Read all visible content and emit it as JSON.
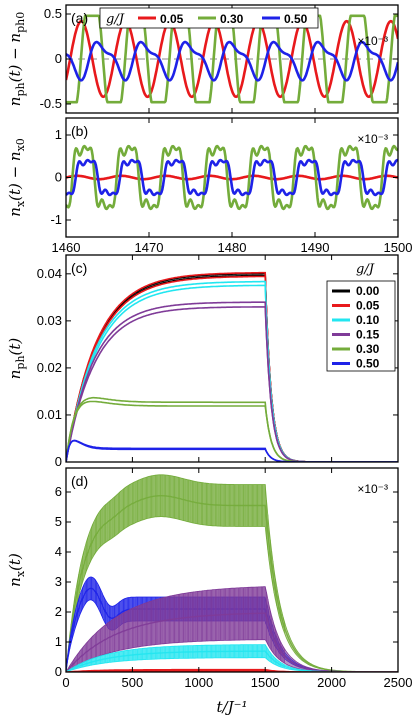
{
  "chart_data": [
    {
      "panel_label": "(a)",
      "type": "line",
      "ylabel": "n_ph(t) − n_ph0",
      "ylabel_parts": {
        "var": "n",
        "sub": "ph",
        "arg": "(t) − ",
        "var2": "n",
        "sub2": "ph0"
      },
      "multiplier": "×10⁻³",
      "xlim": [
        1460,
        1500
      ],
      "ylim": [
        -0.6,
        0.6
      ],
      "yticks": [
        "-0.5",
        "0",
        "0.5"
      ],
      "legend": {
        "title": "g/J",
        "placement": "top",
        "entries": [
          "0.05",
          "0.30",
          "0.50"
        ]
      },
      "reference_line": {
        "y": 0,
        "style": "dashed"
      },
      "series": [
        {
          "name": "0.05",
          "color": "#e8191c",
          "period": 5.33,
          "phase": 1460.5,
          "shape": "sine",
          "amplitude": 0.42,
          "offset": 0.0
        },
        {
          "name": "0.30",
          "color": "#74ac3b",
          "period": 5.33,
          "phase": 1461.8,
          "shape": "plateau",
          "amplitude": 0.48,
          "offset": 0.0
        },
        {
          "name": "0.50",
          "color": "#1e22e8",
          "period": 5.33,
          "phase": 1462.9,
          "shape": "wobble",
          "amplitude": 0.2,
          "offset": 0.0
        }
      ]
    },
    {
      "panel_label": "(b)",
      "type": "line",
      "ylabel": "n_x(t) − n_x0",
      "ylabel_parts": {
        "var": "n",
        "sub": "x",
        "arg": "(t) − ",
        "var2": "n",
        "sub2": "x0"
      },
      "multiplier": "×10⁻³",
      "xlim": [
        1460,
        1500
      ],
      "ylim": [
        -1.4,
        1.4
      ],
      "xticks": [
        "1460",
        "1470",
        "1480",
        "1490",
        "1500"
      ],
      "yticks": [
        "-1",
        "0",
        "1"
      ],
      "series": [
        {
          "name": "0.05",
          "color": "#e8191c",
          "period": 5.33,
          "phase": 1460,
          "shape": "sine",
          "amplitude": 0.04,
          "offset": 0.0
        },
        {
          "name": "0.30",
          "color": "#74ac3b",
          "period": 5.33,
          "phase": 1460.8,
          "shape": "spiky",
          "amplitude": 0.9,
          "offset": 0.0
        },
        {
          "name": "0.50",
          "color": "#1e22e8",
          "period": 5.33,
          "phase": 1461.2,
          "shape": "spiky",
          "amplitude": 0.5,
          "offset": 0.0
        }
      ]
    },
    {
      "panel_label": "(c)",
      "type": "line",
      "ylabel": "n_ph(t)",
      "ylabel_parts": {
        "var": "n",
        "sub": "ph",
        "arg": "(t)"
      },
      "xlim": [
        0,
        2500
      ],
      "ylim": [
        0,
        0.044
      ],
      "yticks": [
        "0",
        "0.01",
        "0.02",
        "0.03",
        "0.04"
      ],
      "legend": {
        "title": "g/J",
        "placement": "right",
        "entries": [
          "0.00",
          "0.05",
          "0.10",
          "0.15",
          "0.30",
          "0.50"
        ]
      },
      "drive_off_time": 1500,
      "series": [
        {
          "name": "0.00",
          "color": "#000000",
          "plateau": 0.0399,
          "tau": 230,
          "overshoot": 0,
          "band": 0.0002,
          "decay": 45
        },
        {
          "name": "0.05",
          "color": "#e8191c",
          "plateau": 0.0399,
          "tau": 230,
          "overshoot": 0,
          "band": 0.0004,
          "decay": 45
        },
        {
          "name": "0.10",
          "color": "#22e6f0",
          "plateau": 0.038,
          "tau": 230,
          "overshoot": 0,
          "band": 0.0004,
          "decay": 45
        },
        {
          "name": "0.15",
          "color": "#7f3b98",
          "plateau": 0.0335,
          "tau": 210,
          "overshoot": 0,
          "band": 0.0005,
          "decay": 45
        },
        {
          "name": "0.30",
          "color": "#74ac3b",
          "plateau": 0.0123,
          "tau": 90,
          "overshoot": 0.0035,
          "band": 0.0004,
          "decay": 45
        },
        {
          "name": "0.50",
          "color": "#1e22e8",
          "plateau": 0.0028,
          "tau": 45,
          "overshoot": 0.0026,
          "band": 0.0001,
          "decay": 40
        }
      ]
    },
    {
      "panel_label": "(d)",
      "type": "area",
      "ylabel": "n_x(t)",
      "ylabel_parts": {
        "var": "n",
        "sub": "x",
        "arg": "(t)"
      },
      "multiplier": "×10⁻³",
      "xlabel": "t/J⁻¹",
      "xlim": [
        0,
        2500
      ],
      "ylim": [
        0,
        6.8
      ],
      "xticks": [
        "0",
        "500",
        "1000",
        "1500",
        "2000",
        "2500"
      ],
      "yticks": [
        "0",
        "1",
        "2",
        "3",
        "4",
        "5",
        "6"
      ],
      "drive_off_time": 1500,
      "series": [
        {
          "name": "0.05",
          "color": "#e8191c",
          "center": 0.06,
          "half_width": 0.03,
          "rise": 200
        },
        {
          "name": "0.10",
          "color": "#22e6f0",
          "center": 0.7,
          "half_width": 0.22,
          "rise": 300
        },
        {
          "name": "0.15",
          "color": "#7f3b98",
          "center": 2.0,
          "half_width": 0.9,
          "rise": 380
        },
        {
          "name": "0.30",
          "color": "#74ac3b",
          "center": 5.55,
          "half_width": 0.7,
          "rise": 130
        },
        {
          "name": "0.50",
          "color": "#1e22e8",
          "center": 2.1,
          "half_width": 0.4,
          "rise": 60
        }
      ]
    }
  ]
}
